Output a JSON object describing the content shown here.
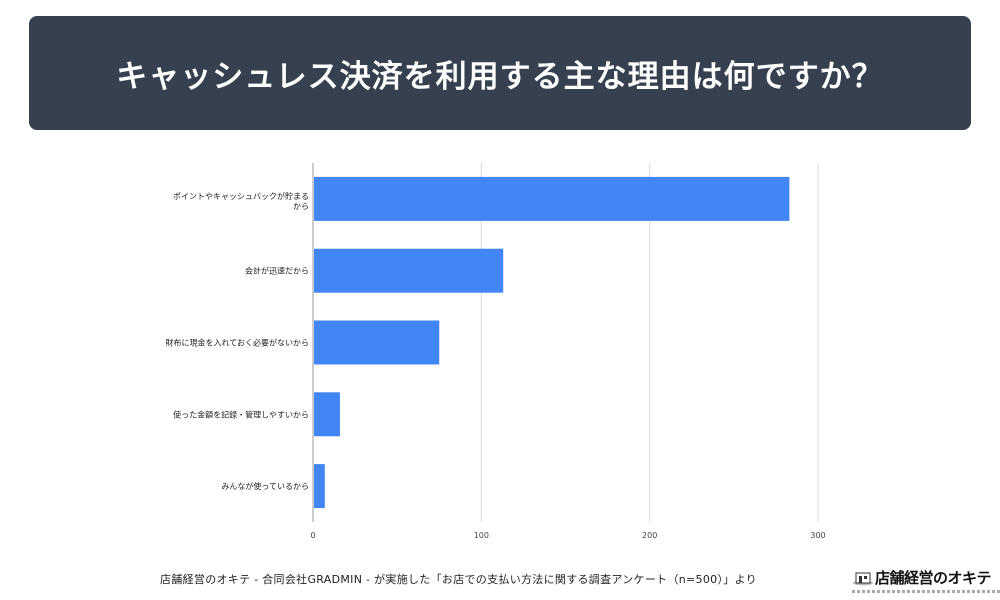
{
  "title": "キャッシュレス決済を利用する主な理由は何ですか？",
  "colors": {
    "banner": "#36404f",
    "bar": "#4285f4",
    "grid": "#d9d9d9"
  },
  "chart_data": {
    "type": "bar",
    "orientation": "horizontal",
    "categories": [
      "ポイントやキャッシュバックが貯まるから",
      "会計が迅速だから",
      "財布に現金を入れておく必要がないから",
      "使った金額を記録・管理しやすいから",
      "みんなが使っているから"
    ],
    "values": [
      283,
      113,
      75,
      16,
      7
    ],
    "xlim": [
      0,
      300
    ],
    "xticks": [
      0,
      100,
      200,
      300
    ],
    "grid": true,
    "legend": "none"
  },
  "footer": {
    "source": "店舗経営のオキテ - 合同会社GRADMIN - が実施した「お店での支払い方法に関する調査アンケート（n=500）」より",
    "logo_text": "店舗経営のオキテ",
    "logo_icon": "shop-building-icon"
  }
}
